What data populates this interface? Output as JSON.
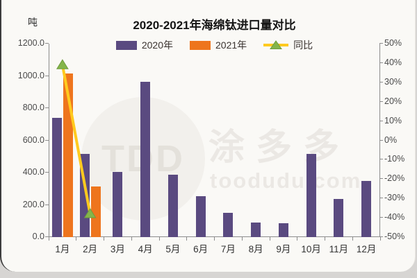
{
  "page": {
    "background": "#d7d5d3",
    "card_background": "#faf9f6",
    "left_edge_color": "#3c3c3c",
    "axis_color": "#8c8c8c"
  },
  "chart_data": {
    "type": "bar",
    "subtype": "grouped bars with line on secondary axis",
    "title": "2020-2021年海绵钛进口量对比",
    "unit_label": "吨",
    "categories": [
      "1月",
      "2月",
      "3月",
      "4月",
      "5月",
      "6月",
      "7月",
      "8月",
      "9月",
      "10月",
      "11月",
      "12月"
    ],
    "series": [
      {
        "name": "2020年",
        "type": "bar",
        "axis": "left",
        "color": "#5a4a80",
        "values": [
          740,
          515,
          405,
          965,
          385,
          255,
          150,
          90,
          85,
          515,
          235,
          350
        ]
      },
      {
        "name": "2021年",
        "type": "bar",
        "axis": "left",
        "color": "#ee751d",
        "values": [
          1015,
          315,
          null,
          null,
          null,
          null,
          null,
          null,
          null,
          null,
          null,
          null
        ]
      },
      {
        "name": "同比",
        "type": "line",
        "axis": "right",
        "line_color": "#ffca1f",
        "marker_color": "#84b54a",
        "marker_edge_color": "#6f9c3e",
        "values_pct": [
          39,
          -38,
          null,
          null,
          null,
          null,
          null,
          null,
          null,
          null,
          null,
          null
        ]
      }
    ],
    "left_axis": {
      "min": 0,
      "max": 1200,
      "step": 200,
      "tick_labels": [
        "0.0",
        "200.0",
        "400.0",
        "600.0",
        "800.0",
        "1000.0",
        "1200.0"
      ]
    },
    "right_axis": {
      "min": -50,
      "max": 50,
      "step": 10,
      "tick_labels": [
        "-50%",
        "-40%",
        "-30%",
        "-20%",
        "-10%",
        "0%",
        "10%",
        "20%",
        "30%",
        "40%",
        "50%"
      ]
    },
    "legend_position": "top",
    "grid": "off"
  },
  "watermark": {
    "logo_text": "TDD",
    "brand_cn": "涂多多",
    "brand_url": "toodudu.com"
  }
}
